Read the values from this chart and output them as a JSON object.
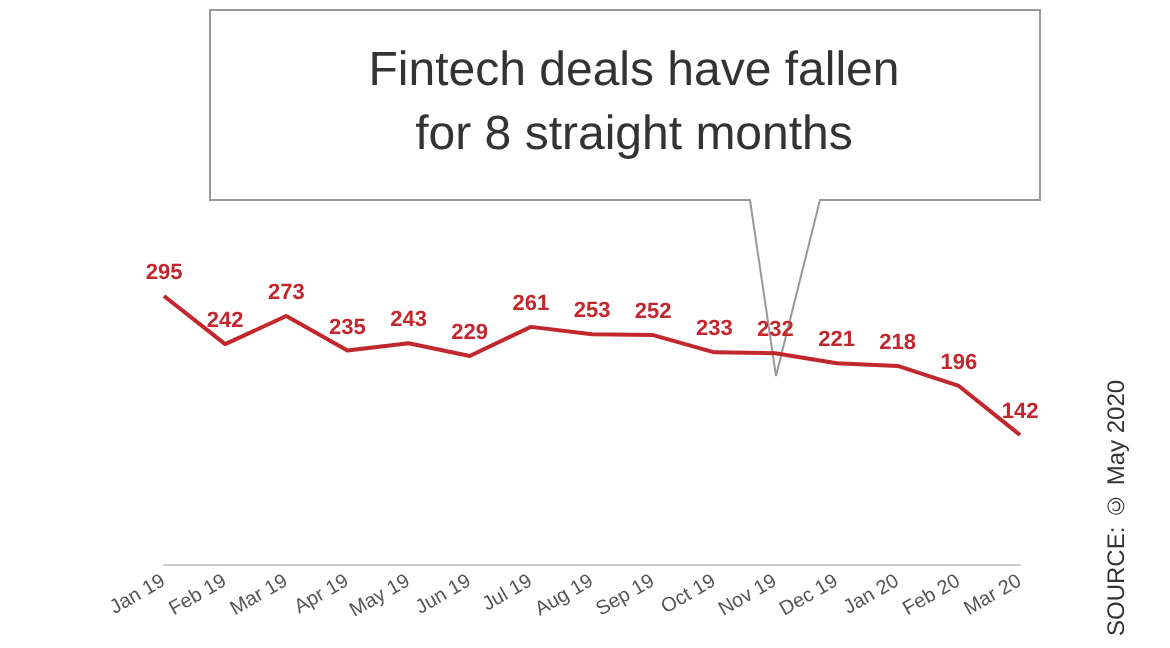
{
  "chart_data": {
    "type": "line",
    "title": "Fintech deals have fallen\nfor 8 straight months",
    "categories": [
      "Jan 19",
      "Feb 19",
      "Mar 19",
      "Apr 19",
      "May 19",
      "Jun 19",
      "Jul 19",
      "Aug 19",
      "Sep 19",
      "Oct 19",
      "Nov 19",
      "Dec 19",
      "Jan 20",
      "Feb 20",
      "Mar 20"
    ],
    "values": [
      295,
      242,
      273,
      235,
      243,
      229,
      261,
      253,
      252,
      233,
      232,
      221,
      218,
      196,
      142
    ],
    "color": "#c1272d",
    "data_labels": true,
    "grid": false,
    "marker": "none",
    "line_style": "solid",
    "annotations": [
      "SOURCE: © May 2020"
    ]
  }
}
